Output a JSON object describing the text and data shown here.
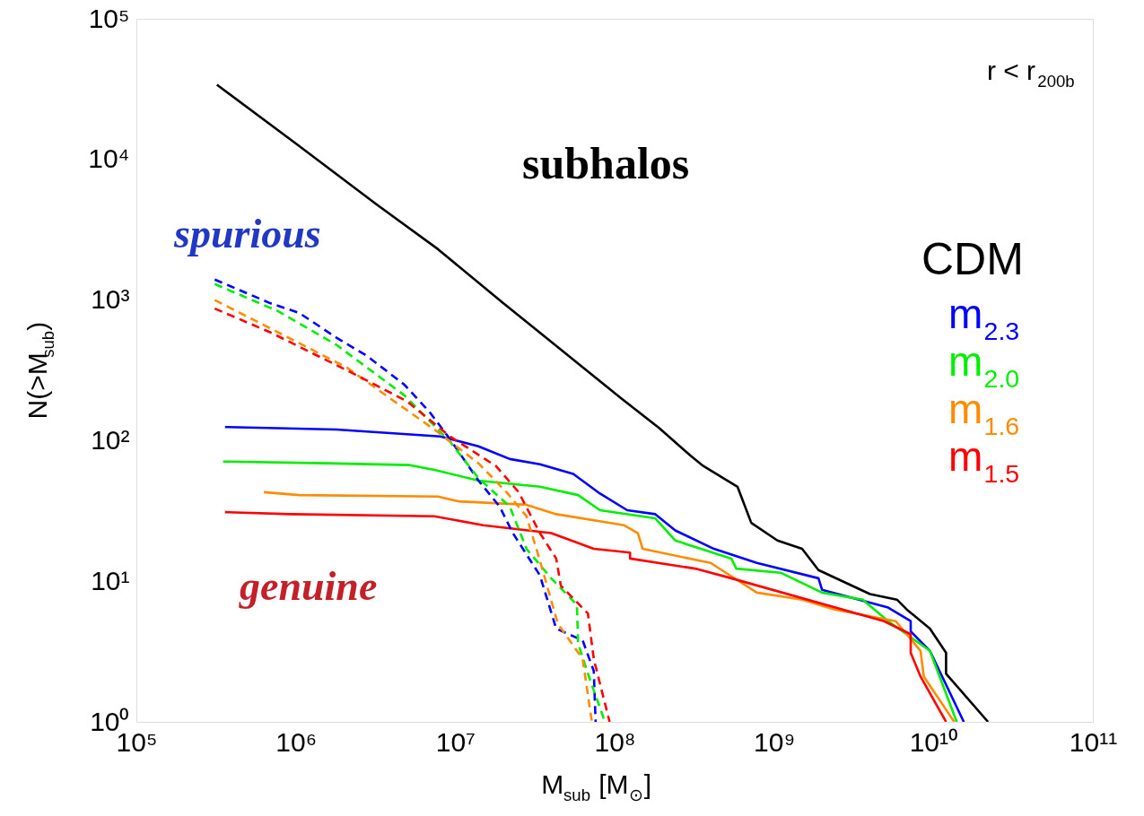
{
  "chart_data": {
    "type": "line",
    "xlabel": "M$_{sub}$ [M$_{⊙}$]",
    "ylabel": "N(>M$_{sub}$)",
    "annotations": [
      "r < r$_{200b}$",
      "subhalos",
      "spurious",
      "genuine"
    ],
    "log": "xy",
    "grid": false,
    "legend": "right",
    "xlim": [
      100000.0,
      100000000000.0
    ],
    "ylim": [
      1,
      100000.0
    ],
    "xticks": [
      {
        "value": 100000.0,
        "label": "10⁵"
      },
      {
        "value": 1000000.0,
        "label": "10⁶"
      },
      {
        "value": 10000000.0,
        "label": "10⁷"
      },
      {
        "value": 100000000.0,
        "label": "10⁸"
      },
      {
        "value": 1000000000.0,
        "label": "10⁹"
      },
      {
        "value": 10000000000.0,
        "label": "10¹⁰"
      },
      {
        "value": 100000000000.0,
        "label": "10¹¹"
      }
    ],
    "yticks": [
      {
        "value": 1,
        "label": "10⁰"
      },
      {
        "value": 10,
        "label": "10¹"
      },
      {
        "value": 100,
        "label": "10²"
      },
      {
        "value": 1000,
        "label": "10³"
      },
      {
        "value": 10000,
        "label": "10⁴"
      },
      {
        "value": 100000,
        "label": "10⁵"
      }
    ],
    "series": [
      {
        "name": "CDM",
        "color": "#000000",
        "line_style": "solid",
        "x": [
          320000.0,
          1000000.0,
          3200000.0,
          7800000.0,
          20000000.0,
          32000000.0,
          110000000.0,
          190000000.0,
          300000000.0,
          360000000.0,
          590000000.0,
          720000000.0,
          1050000000.0,
          1500000000.0,
          1900000000.0,
          4000000000.0,
          5900000000.0,
          6800000000.0,
          9500000000.0,
          12000000000.0,
          12000000000.0,
          22000000000.0
        ],
        "values": [
          34000,
          13000,
          4800,
          2300,
          950,
          620,
          200,
          123,
          78,
          66,
          47,
          26,
          19.5,
          17,
          12,
          8.1,
          7.4,
          6.3,
          4.6,
          3.1,
          2.2,
          1
        ]
      },
      {
        "name": "m$_{2.3}$",
        "color": "#0000ff",
        "line_style": "solid",
        "x": [
          360000.0,
          1800000.0,
          8100000.0,
          14000000.0,
          22000000.0,
          34000000.0,
          55000000.0,
          81000000.0,
          120000000.0,
          180000000.0,
          240000000.0,
          420000000.0,
          780000000.0,
          1900000000.0,
          2000000000.0,
          5200000000.0,
          7200000000.0,
          7200000000.0,
          9500000000.0,
          15500000000.0
        ],
        "values": [
          125,
          120,
          107,
          91,
          74,
          68,
          58,
          42,
          32,
          30,
          23,
          17,
          13.5,
          10.5,
          8.7,
          6.5,
          5.2,
          4.4,
          3.2,
          1
        ]
      },
      {
        "name": "m$_{2.0}$",
        "color": "#00ee00",
        "line_style": "solid",
        "x": [
          350000.0,
          1550000.0,
          5200000.0,
          7400000.0,
          14000000.0,
          34000000.0,
          59000000.0,
          81000000.0,
          180000000.0,
          240000000.0,
          540000000.0,
          580000000.0,
          1100000000.0,
          2000000000.0,
          3600000000.0,
          5200000000.0,
          9500000000.0,
          14000000000.0
        ],
        "values": [
          71,
          69,
          67,
          62,
          52,
          47,
          41,
          32,
          28,
          19.5,
          14.5,
          12.3,
          11.5,
          8.3,
          7.4,
          5.2,
          3.2,
          1
        ]
      },
      {
        "name": "m$_{1.6}$",
        "color": "#ff8c00",
        "line_style": "solid",
        "x": [
          630000.0,
          1050000.0,
          7800000.0,
          10500000.0,
          28000000.0,
          43000000.0,
          115000000.0,
          140000000.0,
          150000000.0,
          400000000.0,
          780000000.0,
          1500000000.0,
          2400000000.0,
          5800000000.0,
          8300000000.0,
          8700000000.0,
          13500000000.0
        ],
        "values": [
          43,
          41,
          40,
          37,
          35,
          30,
          25,
          22,
          17,
          13.5,
          8.3,
          7.4,
          6.3,
          5.2,
          3.2,
          2.1,
          1
        ]
      },
      {
        "name": "m$_{1.5}$",
        "color": "#ff0000",
        "line_style": "solid",
        "x": [
          360000.0,
          930000.0,
          7400000.0,
          15000000.0,
          40000000.0,
          74000000.0,
          125000000.0,
          125000000.0,
          320000000.0,
          540000000.0,
          4900000000.0,
          7200000000.0,
          7200000000.0,
          8300000000.0,
          12000000000.0
        ],
        "values": [
          31,
          30,
          29,
          25,
          22,
          17,
          16,
          14.5,
          12.3,
          10.5,
          5.2,
          4.2,
          3.1,
          2.1,
          1
        ]
      },
      {
        "color": "#0000ff",
        "line_style": "dashed",
        "x": [
          310000.0,
          690000.0,
          1050000.0,
          1800000.0,
          2800000.0,
          4800000.0,
          6900000.0,
          9300000.0,
          14000000.0,
          19000000.0,
          23000000.0,
          34000000.0,
          43000000.0,
          63000000.0,
          74000000.0,
          76000000.0
        ],
        "values": [
          1400,
          950,
          810,
          540,
          400,
          250,
          160,
          102,
          52,
          34,
          22,
          11,
          4.6,
          3.8,
          2.3,
          1
        ]
      },
      {
        "color": "#00ee00",
        "line_style": "dashed",
        "x": [
          310000.0,
          780000.0,
          1800000.0,
          4800000.0,
          9300000.0,
          14000000.0,
          22000000.0,
          28000000.0,
          40000000.0,
          58000000.0,
          59000000.0,
          68000000.0,
          87000000.0
        ],
        "values": [
          1300,
          830,
          480,
          210,
          98,
          54,
          34,
          17,
          10.5,
          6.8,
          3.6,
          2.2,
          1
        ]
      },
      {
        "color": "#ff8c00",
        "line_style": "dashed",
        "x": [
          310000.0,
          690000.0,
          2100000.0,
          3900000.0,
          7400000.0,
          14000000.0,
          21000000.0,
          28000000.0,
          34000000.0,
          44000000.0,
          63000000.0,
          72000000.0
        ],
        "values": [
          1000,
          630,
          330,
          200,
          120,
          69,
          43,
          29,
          14,
          5,
          2.8,
          1
        ]
      },
      {
        "color": "#ff0000",
        "line_style": "dashed",
        "x": [
          310000.0,
          690000.0,
          2300000.0,
          5000000.0,
          9300000.0,
          18000000.0,
          25000000.0,
          34000000.0,
          43000000.0,
          46000000.0,
          68000000.0,
          74000000.0,
          93000000.0
        ],
        "values": [
          870,
          590,
          300,
          190,
          107,
          66,
          43,
          22,
          14.5,
          9.3,
          5.9,
          2.8,
          1
        ]
      }
    ]
  }
}
